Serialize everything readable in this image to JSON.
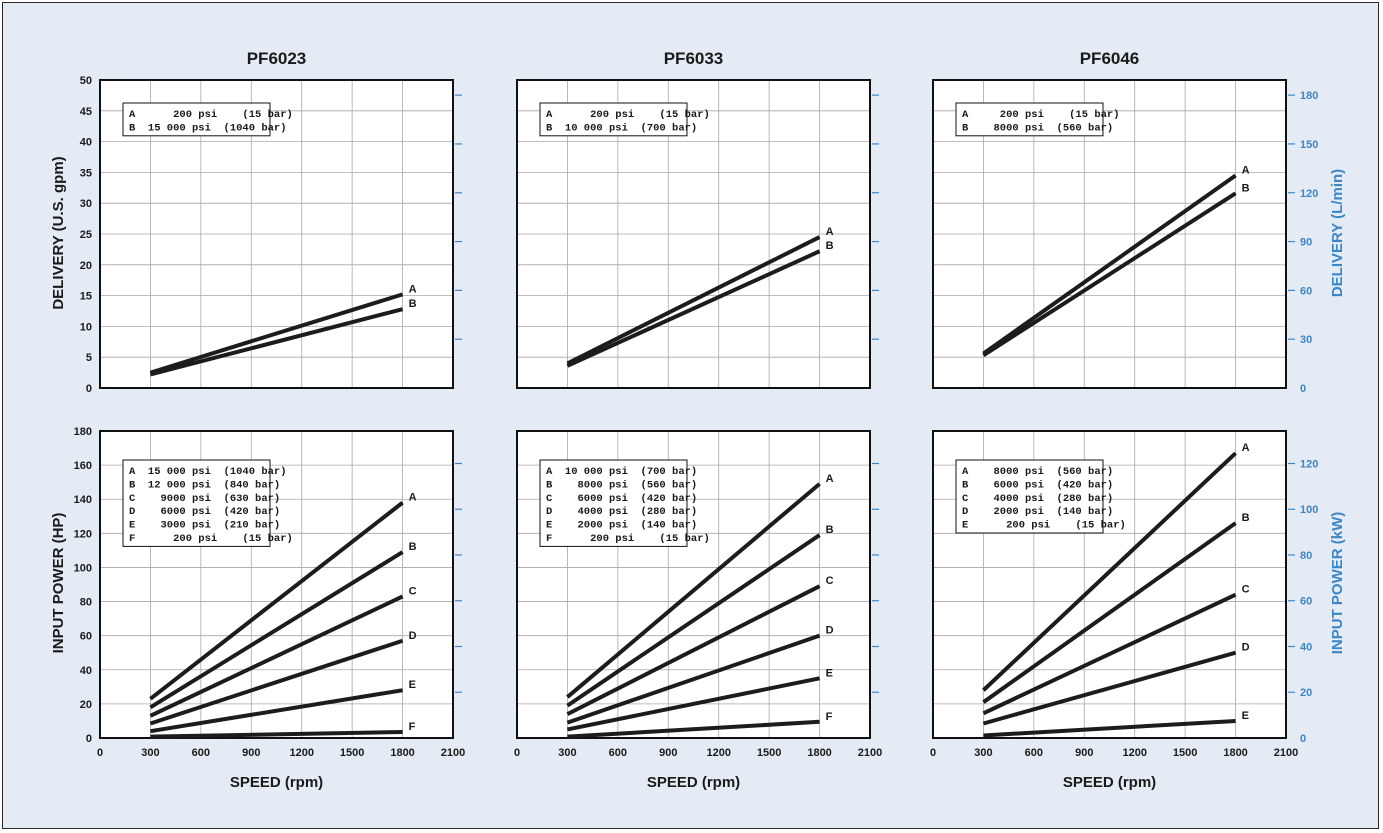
{
  "colors": {
    "series": "#1c1c1c",
    "secondary_axis": "#3b86c6",
    "background": "#e5ebf4"
  },
  "axis_labels": {
    "delivery_left": "DELIVERY (U.S. gpm)",
    "delivery_right": "DELIVERY (L/min)",
    "power_left": "INPUT POWER (HP)",
    "power_right": "INPUT POWER (kW)",
    "speed": "SPEED (rpm)"
  },
  "chart_data": [
    {
      "type": "line",
      "title": "PF6023",
      "xlabel": "",
      "ylabel": "DELIVERY (U.S. gpm)",
      "xlim": [
        0,
        2100
      ],
      "ylim": [
        0,
        50
      ],
      "x_ticks": [
        "0",
        "300",
        "600",
        "900",
        "1200",
        "1500",
        "1800",
        "2100"
      ],
      "y_ticks": [
        "0",
        "5",
        "10",
        "15",
        "20",
        "25",
        "30",
        "35",
        "40",
        "45",
        "50"
      ],
      "legend": [
        "A      200 psi    (15 bar)",
        "B  15 000 psi  (1040 bar)"
      ],
      "series": [
        {
          "name": "A",
          "x": [
            300,
            1800
          ],
          "y": [
            2.5,
            15.2
          ]
        },
        {
          "name": "B",
          "x": [
            300,
            1800
          ],
          "y": [
            2.2,
            12.8
          ]
        }
      ]
    },
    {
      "type": "line",
      "title": "PF6033",
      "xlabel": "",
      "ylabel": "",
      "xlim": [
        0,
        2100
      ],
      "ylim": [
        0,
        50
      ],
      "legend": [
        "A      200 psi    (15 bar)",
        "B  10 000 psi  (700 bar)"
      ],
      "series": [
        {
          "name": "A",
          "x": [
            300,
            1800
          ],
          "y": [
            4,
            24.5
          ]
        },
        {
          "name": "B",
          "x": [
            300,
            1800
          ],
          "y": [
            3.6,
            22.2
          ]
        }
      ]
    },
    {
      "type": "line",
      "title": "PF6046",
      "xlabel": "",
      "ylabel": "",
      "y2label": "DELIVERY (L/min)",
      "xlim": [
        0,
        2100
      ],
      "ylim": [
        0,
        50
      ],
      "y2lim": [
        0,
        189.3
      ],
      "y2_ticks": [
        "0",
        "30",
        "60",
        "90",
        "120",
        "150",
        "180"
      ],
      "legend": [
        "A     200 psi    (15 bar)",
        "B    8000 psi  (560 bar)"
      ],
      "series": [
        {
          "name": "A",
          "x": [
            300,
            1800
          ],
          "y": [
            5.6,
            34.5
          ]
        },
        {
          "name": "B",
          "x": [
            300,
            1800
          ],
          "y": [
            5.3,
            31.6
          ]
        }
      ]
    },
    {
      "type": "line",
      "title": "",
      "xlabel": "SPEED (rpm)",
      "ylabel": "INPUT POWER (HP)",
      "xlim": [
        0,
        2100
      ],
      "ylim": [
        0,
        180
      ],
      "x_ticks": [
        "0",
        "300",
        "600",
        "900",
        "1200",
        "1500",
        "1800",
        "2100"
      ],
      "y_ticks": [
        "0",
        "20",
        "40",
        "60",
        "80",
        "100",
        "120",
        "140",
        "160",
        "180"
      ],
      "legend": [
        "A  15 000 psi  (1040 bar)",
        "B  12 000 psi  (840 bar)",
        "C    9000 psi  (630 bar)",
        "D    6000 psi  (420 bar)",
        "E    3000 psi  (210 bar)",
        "F      200 psi    (15 bar)"
      ],
      "series": [
        {
          "name": "A",
          "x": [
            300,
            1800
          ],
          "y": [
            23,
            138
          ]
        },
        {
          "name": "B",
          "x": [
            300,
            1800
          ],
          "y": [
            18,
            109
          ]
        },
        {
          "name": "C",
          "x": [
            300,
            1800
          ],
          "y": [
            13,
            83
          ]
        },
        {
          "name": "D",
          "x": [
            300,
            1800
          ],
          "y": [
            8.5,
            57
          ]
        },
        {
          "name": "E",
          "x": [
            300,
            1800
          ],
          "y": [
            4,
            28
          ]
        },
        {
          "name": "F",
          "x": [
            300,
            1800
          ],
          "y": [
            0.8,
            3.5
          ]
        }
      ]
    },
    {
      "type": "line",
      "title": "",
      "xlabel": "SPEED (rpm)",
      "ylabel": "",
      "xlim": [
        0,
        2100
      ],
      "ylim": [
        0,
        180
      ],
      "legend": [
        "A  10 000 psi  (700 bar)",
        "B    8000 psi  (560 bar)",
        "C    6000 psi  (420 bar)",
        "D    4000 psi  (280 bar)",
        "E    2000 psi  (140 bar)",
        "F      200 psi    (15 bar)"
      ],
      "series": [
        {
          "name": "A",
          "x": [
            300,
            1800
          ],
          "y": [
            24,
            149
          ]
        },
        {
          "name": "B",
          "x": [
            300,
            1800
          ],
          "y": [
            19,
            119
          ]
        },
        {
          "name": "C",
          "x": [
            300,
            1800
          ],
          "y": [
            14,
            89
          ]
        },
        {
          "name": "D",
          "x": [
            300,
            1800
          ],
          "y": [
            9,
            60
          ]
        },
        {
          "name": "E",
          "x": [
            300,
            1800
          ],
          "y": [
            5,
            35
          ]
        },
        {
          "name": "F",
          "x": [
            300,
            1800
          ],
          "y": [
            0.8,
            9.5
          ]
        }
      ]
    },
    {
      "type": "line",
      "title": "",
      "xlabel": "SPEED (rpm)",
      "ylabel": "",
      "y2label": "INPUT POWER (kW)",
      "xlim": [
        0,
        2100
      ],
      "ylim": [
        0,
        180
      ],
      "y2lim": [
        0,
        134.2
      ],
      "y2_ticks": [
        "0",
        "20",
        "40",
        "60",
        "80",
        "100",
        "120"
      ],
      "legend": [
        "A    8000 psi  (560 bar)",
        "B    6000 psi  (420 bar)",
        "C    4000 psi  (280 bar)",
        "D    2000 psi  (140 bar)",
        "E      200 psi    (15 bar)"
      ],
      "series": [
        {
          "name": "A",
          "x": [
            300,
            1800
          ],
          "y": [
            28,
            167
          ]
        },
        {
          "name": "B",
          "x": [
            300,
            1800
          ],
          "y": [
            21,
            126
          ]
        },
        {
          "name": "C",
          "x": [
            300,
            1800
          ],
          "y": [
            14.5,
            84
          ]
        },
        {
          "name": "D",
          "x": [
            300,
            1800
          ],
          "y": [
            8.5,
            50
          ]
        },
        {
          "name": "E",
          "x": [
            300,
            1800
          ],
          "y": [
            1.5,
            10
          ]
        }
      ]
    }
  ]
}
